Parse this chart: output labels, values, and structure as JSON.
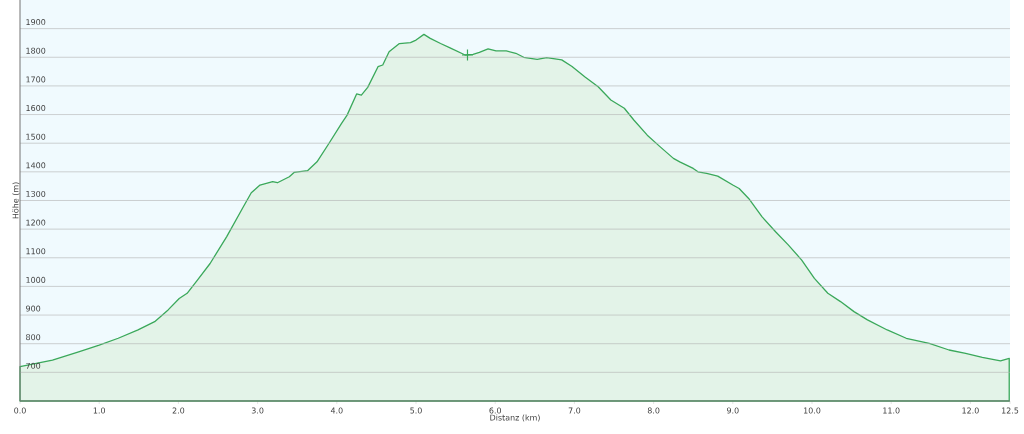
{
  "chart_data": {
    "type": "area",
    "xlabel": "Distanz  (km)",
    "ylabel": "Höhe (m)",
    "xlim": [
      0,
      12.5
    ],
    "ylim": [
      600,
      2000
    ],
    "xticks": [
      {
        "value": 0,
        "label": "0.0"
      },
      {
        "value": 1,
        "label": "1.0"
      },
      {
        "value": 2,
        "label": "2.0"
      },
      {
        "value": 3,
        "label": "3.0"
      },
      {
        "value": 4,
        "label": "4.0"
      },
      {
        "value": 5,
        "label": "5.0"
      },
      {
        "value": 6,
        "label": "6.0"
      },
      {
        "value": 7,
        "label": "7.0"
      },
      {
        "value": 8,
        "label": "8.0"
      },
      {
        "value": 9,
        "label": "9.0"
      },
      {
        "value": 10,
        "label": "10.0"
      },
      {
        "value": 11,
        "label": "11.0"
      },
      {
        "value": 12,
        "label": "12.0"
      },
      {
        "value": 12.5,
        "label": "12.5"
      }
    ],
    "yticks": [
      700,
      800,
      900,
      1000,
      1100,
      1200,
      1300,
      1400,
      1500,
      1600,
      1700,
      1800,
      1900
    ],
    "grid": "y",
    "series": [
      {
        "color": "#3aa85a",
        "x": [
          0,
          0.41,
          0.75,
          1.0,
          1.24,
          1.49,
          1.7,
          1.87,
          2.01,
          2.11,
          2.24,
          2.4,
          2.61,
          2.82,
          2.92,
          3.03,
          3.19,
          3.25,
          3.4,
          3.46,
          3.63,
          3.75,
          3.9,
          4.06,
          4.13,
          4.25,
          4.31,
          4.39,
          4.52,
          4.58,
          4.66,
          4.79,
          4.93,
          5.0,
          5.1,
          5.18,
          5.31,
          5.43,
          5.62,
          5.72,
          5.8,
          5.91,
          6.01,
          6.14,
          6.26,
          6.36,
          6.53,
          6.65,
          6.84,
          6.97,
          7.13,
          7.3,
          7.46,
          7.63,
          7.75,
          7.92,
          8.08,
          8.25,
          8.33,
          8.5,
          8.56,
          8.67,
          8.81,
          9.0,
          9.08,
          9.2,
          9.37,
          9.54,
          9.7,
          9.87,
          10.03,
          10.2,
          10.36,
          10.53,
          10.7,
          10.95,
          11.19,
          11.48,
          11.73,
          11.94,
          12.15,
          12.38,
          12.49
        ],
        "values": [
          720,
          743,
          772,
          795,
          819,
          848,
          877,
          918,
          958,
          976,
          1022,
          1080,
          1174,
          1278,
          1327,
          1354,
          1366,
          1362,
          1383,
          1398,
          1404,
          1435,
          1499,
          1569,
          1598,
          1672,
          1668,
          1695,
          1767,
          1773,
          1819,
          1848,
          1851,
          1860,
          1880,
          1866,
          1848,
          1833,
          1808,
          1810,
          1817,
          1829,
          1822,
          1822,
          1814,
          1800,
          1793,
          1799,
          1791,
          1768,
          1732,
          1697,
          1651,
          1622,
          1581,
          1528,
          1488,
          1447,
          1435,
          1412,
          1400,
          1395,
          1385,
          1354,
          1342,
          1307,
          1243,
          1191,
          1145,
          1092,
          1028,
          976,
          947,
          912,
          883,
          848,
          819,
          801,
          778,
          766,
          752,
          740,
          749
        ]
      },
      {
        "type": "scatter",
        "marker": "cross",
        "color": "#3aa85a",
        "x": [
          5.65
        ],
        "values": [
          1808
        ]
      }
    ]
  }
}
